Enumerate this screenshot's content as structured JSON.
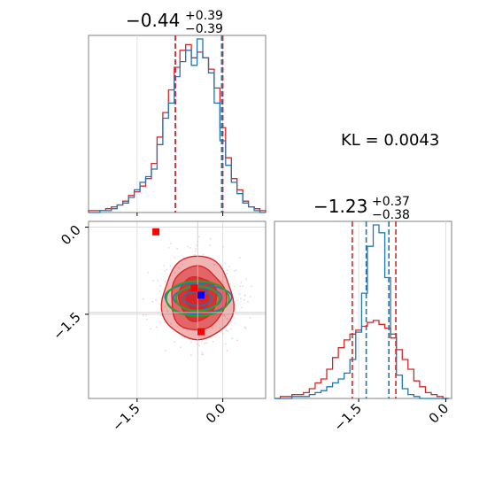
{
  "chart_data": {
    "type": "corner",
    "kl_label": "KL = 0.0043",
    "colors": {
      "red": "#d62728",
      "blue": "#1f77b4",
      "green": "#2ca02c",
      "marker_red": "#ff0000",
      "marker_blue": "#0000ff"
    },
    "parameters": [
      {
        "range": [
          -2.35,
          0.75
        ],
        "ticks": [
          {
            "value": -1.5,
            "label": "−1.5"
          },
          {
            "value": 0.0,
            "label": "0.0"
          }
        ],
        "title": {
          "main": "−0.44",
          "plus": "+0.39",
          "minus": "−0.39"
        },
        "quantiles": {
          "red": [
            -0.83,
            0.0
          ],
          "blue": [
            -0.83,
            -0.02
          ]
        }
      },
      {
        "range": [
          -2.95,
          0.1
        ],
        "ticks": [
          {
            "value": -1.5,
            "label": "−1.5"
          },
          {
            "value": 0.0,
            "label": "0.0"
          }
        ],
        "title": {
          "main": "−1.23",
          "plus": "+0.37",
          "minus": "−0.38"
        },
        "quantiles": {
          "red": [
            -1.61,
            -0.86
          ],
          "blue": [
            -1.37,
            -0.98
          ]
        }
      }
    ],
    "hist_x": {
      "bin_centers": [
        -2.3,
        -2.2,
        -2.1,
        -2.0,
        -1.9,
        -1.8,
        -1.7,
        -1.6,
        -1.5,
        -1.4,
        -1.3,
        -1.2,
        -1.1,
        -1.0,
        -0.9,
        -0.8,
        -0.7,
        -0.6,
        -0.5,
        -0.4,
        -0.3,
        -0.2,
        -0.1,
        0.0,
        0.1,
        0.2,
        0.3,
        0.4,
        0.5,
        0.6,
        0.7
      ],
      "red": [
        0.01,
        0.01,
        0.01,
        0.02,
        0.03,
        0.04,
        0.06,
        0.09,
        0.11,
        0.14,
        0.18,
        0.26,
        0.4,
        0.53,
        0.65,
        0.77,
        0.86,
        0.89,
        0.82,
        0.85,
        0.82,
        0.76,
        0.66,
        0.45,
        0.29,
        0.18,
        0.12,
        0.06,
        0.03,
        0.02,
        0.01
      ],
      "blue": [
        0.0,
        0.0,
        0.01,
        0.01,
        0.02,
        0.04,
        0.05,
        0.08,
        0.12,
        0.16,
        0.19,
        0.23,
        0.36,
        0.5,
        0.58,
        0.72,
        0.8,
        0.86,
        0.78,
        0.92,
        0.82,
        0.74,
        0.58,
        0.38,
        0.25,
        0.16,
        0.1,
        0.05,
        0.03,
        0.01,
        0.0
      ]
    },
    "hist_y": {
      "bin_centers": [
        -2.9,
        -2.8,
        -2.7,
        -2.6,
        -2.5,
        -2.4,
        -2.3,
        -2.2,
        -2.1,
        -2.0,
        -1.9,
        -1.8,
        -1.7,
        -1.6,
        -1.5,
        -1.4,
        -1.3,
        -1.2,
        -1.1,
        -1.0,
        -0.9,
        -0.8,
        -0.7,
        -0.6,
        -0.5,
        -0.4,
        -0.3,
        -0.2,
        -0.1,
        0.0
      ],
      "red": [
        0.0,
        0.01,
        0.01,
        0.02,
        0.02,
        0.03,
        0.05,
        0.08,
        0.1,
        0.15,
        0.21,
        0.26,
        0.3,
        0.33,
        0.35,
        0.37,
        0.39,
        0.4,
        0.38,
        0.36,
        0.31,
        0.25,
        0.2,
        0.15,
        0.09,
        0.06,
        0.03,
        0.02,
        0.01,
        0.0
      ],
      "blue": [
        0.0,
        0.0,
        0.0,
        0.01,
        0.01,
        0.01,
        0.02,
        0.03,
        0.04,
        0.06,
        0.08,
        0.1,
        0.13,
        0.2,
        0.34,
        0.54,
        0.78,
        0.89,
        0.85,
        0.62,
        0.33,
        0.12,
        0.05,
        0.02,
        0.01,
        0.0,
        0.0,
        0.0,
        0.0,
        0.0
      ]
    },
    "scatter_2d": {
      "center": [
        -0.44,
        -1.23
      ],
      "red_filled_contours": [
        {
          "rx": 0.62,
          "ry": 0.72,
          "opacity": 0.35
        },
        {
          "rx": 0.48,
          "ry": 0.55,
          "opacity": 0.55
        },
        {
          "rx": 0.33,
          "ry": 0.38,
          "opacity": 0.8
        },
        {
          "rx": 0.2,
          "ry": 0.22,
          "opacity": 0.95
        }
      ],
      "blue_contours": [
        {
          "rx": 0.58,
          "ry": 0.26
        },
        {
          "rx": 0.42,
          "ry": 0.19
        },
        {
          "rx": 0.25,
          "ry": 0.12
        }
      ],
      "green_contours": [
        {
          "rx": 0.55,
          "ry": 0.3
        },
        {
          "rx": 0.38,
          "ry": 0.21
        }
      ],
      "markers": [
        {
          "x": -1.17,
          "y": -0.08,
          "color": "red"
        },
        {
          "x": -0.5,
          "y": -1.05,
          "color": "red"
        },
        {
          "x": -0.38,
          "y": -1.17,
          "color": "blue"
        },
        {
          "x": -0.38,
          "y": -1.8,
          "color": "red"
        }
      ],
      "crosshair": {
        "x": -0.44,
        "y": -1.47
      }
    }
  }
}
